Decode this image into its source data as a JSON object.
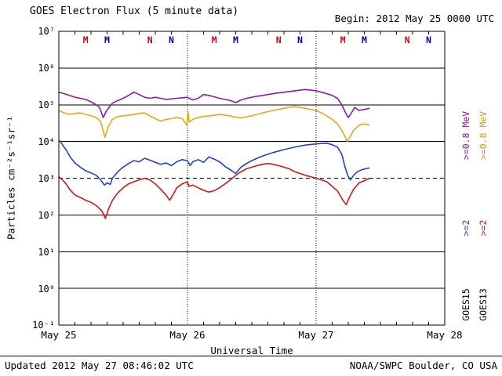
{
  "header": {
    "title": "GOES Electron Flux (5 minute data)",
    "begin_label": "Begin: 2012 May 25 0000 UTC"
  },
  "footer": {
    "updated": "Updated 2012 May 27 08:46:02 UTC",
    "credit": "NOAA/SWPC Boulder, CO USA"
  },
  "legend": {
    "columns": [
      {
        "satellite": "GOES15",
        "e08": ">=0.8 MeV",
        "e08_color": "#8d1c9e",
        "e2": ">=2",
        "e2_color": "#2440c8"
      },
      {
        "satellite": "GOES13",
        "e08": ">=0.8 MeV",
        "e08_color": "#cf9c1d",
        "e2": ">=2",
        "e2_color": "#cc1a1a"
      }
    ]
  },
  "chart_data": {
    "type": "line",
    "title": "GOES Electron Flux (5 minute data)",
    "xlabel": "Universal Time",
    "ylabel": "Particles cm⁻²s⁻¹sr⁻¹",
    "x_unit": "hours since 2012 May 25 0000 UTC",
    "xlim": [
      0,
      72
    ],
    "ylim_log10": [
      -1,
      7
    ],
    "yscale": "log",
    "grid": "horizontal-decades",
    "legend_position": "right-rotated",
    "yticks": [
      "10⁷",
      "10⁶",
      "10⁵",
      "10⁴",
      "10³",
      "10²",
      "10¹",
      "10⁰",
      "10⁻¹"
    ],
    "xticks": [
      {
        "t": 0,
        "label": "May 25"
      },
      {
        "t": 24,
        "label": "May 26"
      },
      {
        "t": 48,
        "label": "May 27"
      },
      {
        "t": 72,
        "label": "May 28"
      }
    ],
    "gridline_exponents": [
      0,
      1,
      2,
      4,
      5,
      6
    ],
    "threshold_log10": 3,
    "day_boundaries": [
      24,
      48
    ],
    "markers": [
      {
        "t": 5,
        "label": "M",
        "color": "#cc0000"
      },
      {
        "t": 9,
        "label": "M",
        "color": "#0000aa"
      },
      {
        "t": 17,
        "label": "N",
        "color": "#cc0000"
      },
      {
        "t": 21,
        "label": "N",
        "color": "#0000aa"
      },
      {
        "t": 29,
        "label": "M",
        "color": "#cc0000"
      },
      {
        "t": 33,
        "label": "M",
        "color": "#0000aa"
      },
      {
        "t": 41,
        "label": "N",
        "color": "#cc0000"
      },
      {
        "t": 45,
        "label": "N",
        "color": "#0000aa"
      },
      {
        "t": 53,
        "label": "M",
        "color": "#cc0000"
      },
      {
        "t": 57,
        "label": "M",
        "color": "#0000aa"
      },
      {
        "t": 65,
        "label": "N",
        "color": "#cc0000"
      },
      {
        "t": 69,
        "label": "N",
        "color": "#0000aa"
      }
    ],
    "series": [
      {
        "name": "GOES15 >=0.8 MeV",
        "key": "goes15-e08",
        "color": "#8d1c9e",
        "points": [
          [
            0,
            220000.0
          ],
          [
            1,
            200000.0
          ],
          [
            2,
            180000.0
          ],
          [
            3,
            160000.0
          ],
          [
            4,
            150000.0
          ],
          [
            5,
            140000.0
          ],
          [
            6,
            120000.0
          ],
          [
            7,
            100000.0
          ],
          [
            7.6,
            85000.0
          ],
          [
            8.3,
            45000.0
          ],
          [
            8.8,
            65000.0
          ],
          [
            9.5,
            90000.0
          ],
          [
            10,
            110000.0
          ],
          [
            11,
            130000.0
          ],
          [
            12,
            150000.0
          ],
          [
            13,
            180000.0
          ],
          [
            14,
            220000.0
          ],
          [
            15,
            190000.0
          ],
          [
            16,
            160000.0
          ],
          [
            17,
            150000.0
          ],
          [
            18,
            160000.0
          ],
          [
            19,
            150000.0
          ],
          [
            20,
            140000.0
          ],
          [
            21,
            145000.0
          ],
          [
            22,
            150000.0
          ],
          [
            23,
            155000.0
          ],
          [
            24,
            160000.0
          ],
          [
            25,
            135000.0
          ],
          [
            26,
            150000.0
          ],
          [
            27,
            190000.0
          ],
          [
            28,
            180000.0
          ],
          [
            29,
            165000.0
          ],
          [
            30,
            150000.0
          ],
          [
            31,
            140000.0
          ],
          [
            32,
            130000.0
          ],
          [
            33,
            115000.0
          ],
          [
            34,
            135000.0
          ],
          [
            35,
            150000.0
          ],
          [
            36,
            160000.0
          ],
          [
            37,
            170000.0
          ],
          [
            38,
            180000.0
          ],
          [
            39,
            190000.0
          ],
          [
            40,
            200000.0
          ],
          [
            41,
            210000.0
          ],
          [
            42,
            220000.0
          ],
          [
            43,
            230000.0
          ],
          [
            44,
            240000.0
          ],
          [
            45,
            250000.0
          ],
          [
            46,
            260000.0
          ],
          [
            47,
            250000.0
          ],
          [
            48,
            240000.0
          ],
          [
            49,
            220000.0
          ],
          [
            50,
            200000.0
          ],
          [
            51,
            180000.0
          ],
          [
            52,
            150000.0
          ],
          [
            52.8,
            100000.0
          ],
          [
            53.5,
            60000.0
          ],
          [
            54,
            45000.0
          ],
          [
            54.6,
            60000.0
          ],
          [
            55.2,
            85000.0
          ],
          [
            56,
            70000.0
          ],
          [
            57,
            75000.0
          ],
          [
            58,
            80000.0
          ]
        ]
      },
      {
        "name": "GOES13 >=0.8 MeV",
        "key": "goes13-e08",
        "color": "#e0a81e",
        "points": [
          [
            0,
            70000.0
          ],
          [
            1,
            60000.0
          ],
          [
            2,
            55000.0
          ],
          [
            3,
            58000.0
          ],
          [
            4,
            60000.0
          ],
          [
            5,
            55000.0
          ],
          [
            6,
            50000.0
          ],
          [
            7,
            45000.0
          ],
          [
            7.8,
            35000.0
          ],
          [
            8.6,
            13000.0
          ],
          [
            9.2,
            25000.0
          ],
          [
            10,
            40000.0
          ],
          [
            11,
            48000.0
          ],
          [
            12,
            50000.0
          ],
          [
            13,
            52000.0
          ],
          [
            14,
            55000.0
          ],
          [
            15,
            58000.0
          ],
          [
            16,
            60000.0
          ],
          [
            17,
            50000.0
          ],
          [
            18,
            42000.0
          ],
          [
            19,
            36000.0
          ],
          [
            20,
            40000.0
          ],
          [
            21,
            42000.0
          ],
          [
            22,
            45000.0
          ],
          [
            23,
            42000.0
          ],
          [
            23.9,
            28000.0
          ],
          [
            24.1,
            65000.0
          ],
          [
            24.3,
            34000.0
          ],
          [
            25,
            40000.0
          ],
          [
            26,
            45000.0
          ],
          [
            27,
            48000.0
          ],
          [
            28,
            50000.0
          ],
          [
            29,
            52000.0
          ],
          [
            30,
            55000.0
          ],
          [
            31,
            52000.0
          ],
          [
            32,
            50000.0
          ],
          [
            33,
            46000.0
          ],
          [
            34,
            44000.0
          ],
          [
            35,
            47000.0
          ],
          [
            36,
            50000.0
          ],
          [
            37,
            55000.0
          ],
          [
            38,
            60000.0
          ],
          [
            39,
            65000.0
          ],
          [
            40,
            70000.0
          ],
          [
            41,
            75000.0
          ],
          [
            42,
            80000.0
          ],
          [
            43,
            85000.0
          ],
          [
            44,
            90000.0
          ],
          [
            45,
            85000.0
          ],
          [
            46,
            80000.0
          ],
          [
            47,
            75000.0
          ],
          [
            48,
            70000.0
          ],
          [
            49,
            60000.0
          ],
          [
            50,
            50000.0
          ],
          [
            51,
            40000.0
          ],
          [
            52,
            30000.0
          ],
          [
            53,
            18000.0
          ],
          [
            53.8,
            10000.0
          ],
          [
            54.4,
            14000.0
          ],
          [
            55,
            20000.0
          ],
          [
            56,
            28000.0
          ],
          [
            57,
            30000.0
          ],
          [
            58,
            28000.0
          ]
        ]
      },
      {
        "name": "GOES15 >=2 MeV",
        "key": "goes15-e2",
        "color": "#2440c8",
        "points": [
          [
            0,
            11000.0
          ],
          [
            0.5,
            9000.0
          ],
          [
            1,
            7000.0
          ],
          [
            1.5,
            5500.0
          ],
          [
            2,
            4000.0
          ],
          [
            2.5,
            3200.0
          ],
          [
            3,
            2600.0
          ],
          [
            4,
            2000.0
          ],
          [
            5,
            1600.0
          ],
          [
            6,
            1400.0
          ],
          [
            7,
            1200.0
          ],
          [
            7.8,
            900.0
          ],
          [
            8.5,
            650.0
          ],
          [
            9,
            750.0
          ],
          [
            9.6,
            680.0
          ],
          [
            10,
            1000.0
          ],
          [
            11,
            1500.0
          ],
          [
            12,
            2000.0
          ],
          [
            13,
            2500.0
          ],
          [
            14,
            3000.0
          ],
          [
            15,
            2800.0
          ],
          [
            16,
            3500.0
          ],
          [
            17,
            3100.0
          ],
          [
            18,
            2700.0
          ],
          [
            19,
            2400.0
          ],
          [
            20,
            2600.0
          ],
          [
            21,
            2200.0
          ],
          [
            22,
            2800.0
          ],
          [
            23,
            3200.0
          ],
          [
            24,
            3000.0
          ],
          [
            24.5,
            2200.0
          ],
          [
            25,
            2800.0
          ],
          [
            26,
            3200.0
          ],
          [
            27,
            2700.0
          ],
          [
            28,
            3800.0
          ],
          [
            29,
            3300.0
          ],
          [
            30,
            2800.0
          ],
          [
            31,
            2100.0
          ],
          [
            32,
            1700.0
          ],
          [
            33,
            1350.0
          ],
          [
            34,
            2000.0
          ],
          [
            35,
            2500.0
          ],
          [
            36,
            3000.0
          ],
          [
            37,
            3500.0
          ],
          [
            38,
            4000.0
          ],
          [
            39,
            4500.0
          ],
          [
            40,
            5000.0
          ],
          [
            41,
            5500.0
          ],
          [
            42,
            6000.0
          ],
          [
            43,
            6500.0
          ],
          [
            44,
            7000.0
          ],
          [
            45,
            7500.0
          ],
          [
            46,
            8000.0
          ],
          [
            47,
            8300.0
          ],
          [
            48,
            8600.0
          ],
          [
            49,
            8800.0
          ],
          [
            50,
            9000.0
          ],
          [
            51,
            8200.0
          ],
          [
            52,
            7000.0
          ],
          [
            52.8,
            4500.0
          ],
          [
            53.4,
            2000.0
          ],
          [
            53.9,
            1200.0
          ],
          [
            54.4,
            900.0
          ],
          [
            55,
            1200.0
          ],
          [
            55.7,
            1500.0
          ],
          [
            56.5,
            1700.0
          ],
          [
            57.2,
            1800.0
          ],
          [
            58,
            1900.0
          ]
        ]
      },
      {
        "name": "GOES13 >=2 MeV",
        "key": "goes13-e2",
        "color": "#cc1a1a",
        "points": [
          [
            0,
            1100.0
          ],
          [
            0.5,
            950.0
          ],
          [
            1,
            800.0
          ],
          [
            1.5,
            650.0
          ],
          [
            2,
            500.0
          ],
          [
            3,
            350.0
          ],
          [
            4,
            300.0
          ],
          [
            5,
            250.0
          ],
          [
            6,
            220.0
          ],
          [
            7,
            180.0
          ],
          [
            8,
            130.0
          ],
          [
            8.7,
            80.0
          ],
          [
            9.3,
            150.0
          ],
          [
            10,
            250.0
          ],
          [
            11,
            400.0
          ],
          [
            12,
            550.0
          ],
          [
            13,
            700.0
          ],
          [
            14,
            800.0
          ],
          [
            15,
            900.0
          ],
          [
            16,
            1000.0
          ],
          [
            17,
            900.0
          ],
          [
            18,
            700.0
          ],
          [
            19,
            500.0
          ],
          [
            20,
            350.0
          ],
          [
            20.7,
            250.0
          ],
          [
            21.5,
            400.0
          ],
          [
            22,
            550.0
          ],
          [
            23,
            700.0
          ],
          [
            24,
            800.0
          ],
          [
            24.3,
            600.0
          ],
          [
            25,
            650.0
          ],
          [
            26,
            550.0
          ],
          [
            27,
            470.0
          ],
          [
            28,
            420.0
          ],
          [
            29,
            460.0
          ],
          [
            30,
            550.0
          ],
          [
            31,
            700.0
          ],
          [
            32,
            900.0
          ],
          [
            33,
            1200.0
          ],
          [
            34,
            1500.0
          ],
          [
            35,
            1800.0
          ],
          [
            36,
            2000.0
          ],
          [
            37,
            2200.0
          ],
          [
            38,
            2400.0
          ],
          [
            39,
            2500.0
          ],
          [
            40,
            2400.0
          ],
          [
            41,
            2200.0
          ],
          [
            42,
            2000.0
          ],
          [
            43,
            1800.0
          ],
          [
            44,
            1500.0
          ],
          [
            45,
            1350.0
          ],
          [
            46,
            1200.0
          ],
          [
            47,
            1100.0
          ],
          [
            48,
            1000.0
          ],
          [
            49,
            900.0
          ],
          [
            50,
            800.0
          ],
          [
            51,
            600.0
          ],
          [
            52,
            450.0
          ],
          [
            53,
            250.0
          ],
          [
            53.6,
            190.0
          ],
          [
            54.2,
            300.0
          ],
          [
            55,
            500.0
          ],
          [
            56,
            750.0
          ],
          [
            57,
            850.0
          ],
          [
            58,
            1000.0
          ]
        ]
      }
    ]
  }
}
